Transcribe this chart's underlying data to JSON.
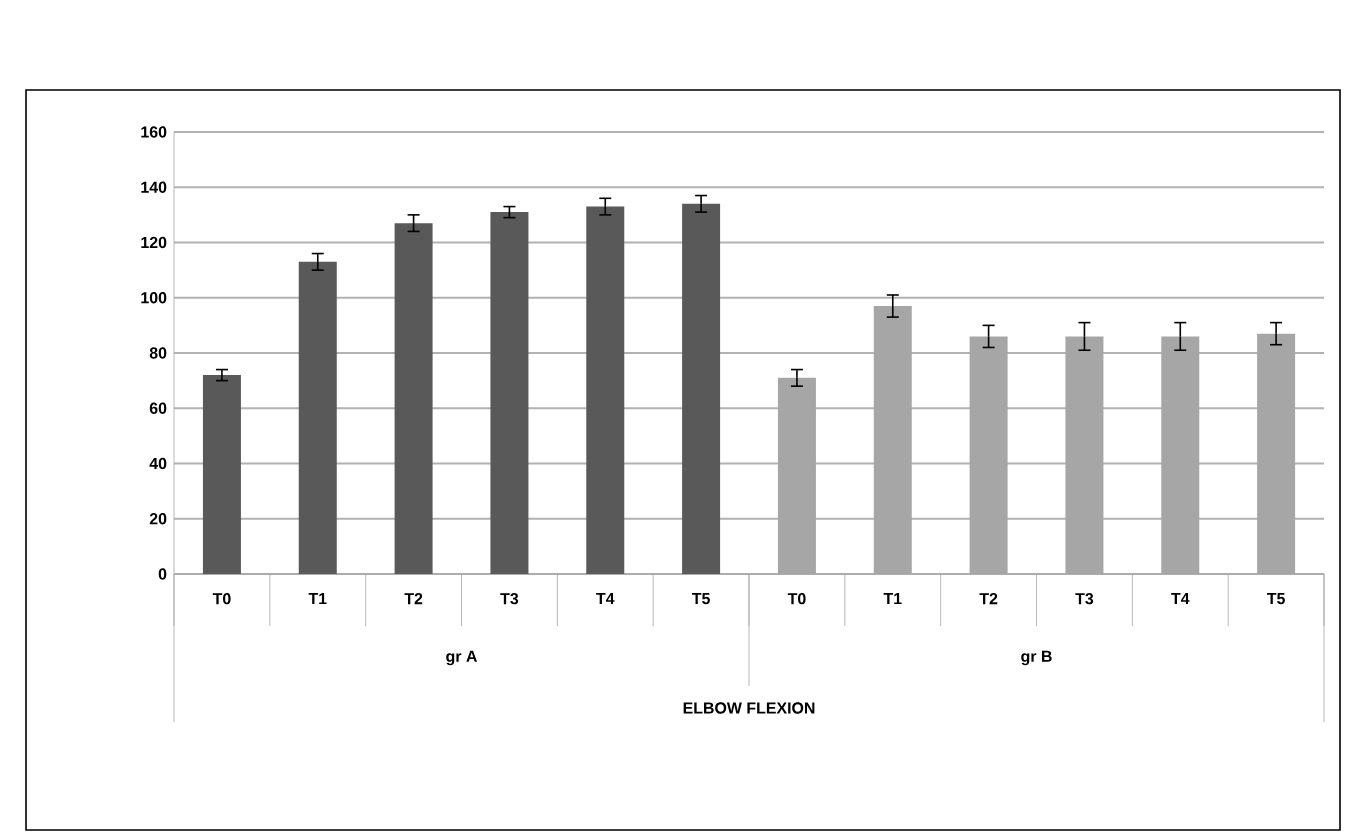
{
  "chart_data": {
    "type": "bar",
    "annotations": [
      "gr A",
      "gr B",
      "ELBOW FLEXION"
    ],
    "categories": [
      "T0",
      "T1",
      "T2",
      "T3",
      "T4",
      "T5",
      "T0",
      "T1",
      "T2",
      "T3",
      "T4",
      "T5"
    ],
    "series": [
      {
        "color": "#595959",
        "values": [
          72,
          113,
          127,
          131,
          133,
          134,
          null,
          null,
          null,
          null,
          null,
          null
        ],
        "errors": [
          2,
          3,
          3,
          2,
          3,
          3,
          null,
          null,
          null,
          null,
          null,
          null
        ]
      },
      {
        "color": "#a6a6a6",
        "values": [
          null,
          null,
          null,
          null,
          null,
          null,
          71,
          97,
          86,
          86,
          86,
          87
        ],
        "errors": [
          null,
          null,
          null,
          null,
          null,
          null,
          3,
          4,
          4,
          5,
          5,
          4
        ]
      }
    ],
    "ylim": [
      0,
      160
    ],
    "yticks": [
      0,
      20,
      40,
      60,
      80,
      100,
      120,
      140,
      160
    ],
    "grid": "y",
    "legend": false
  }
}
